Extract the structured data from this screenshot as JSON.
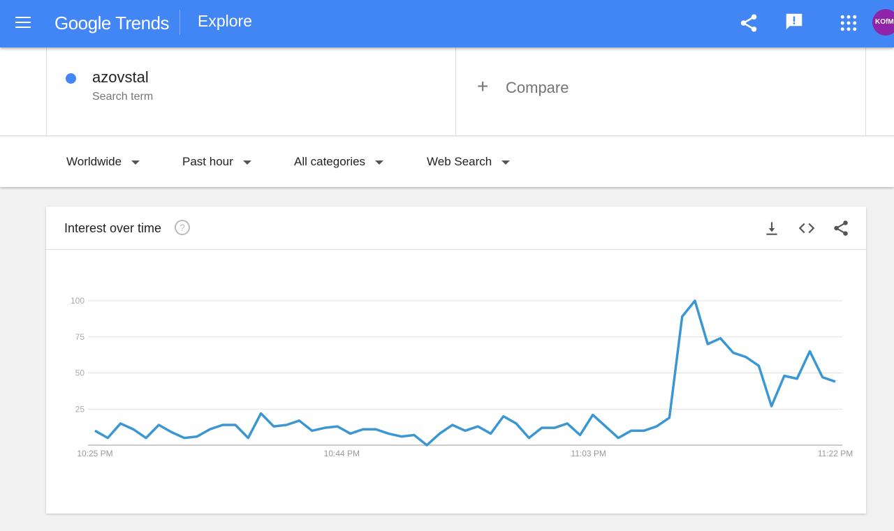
{
  "header": {
    "logo": "Google Trends",
    "page": "Explore",
    "avatar_text": "KOfMO",
    "icons": [
      "menu-icon",
      "share-icon",
      "feedback-icon",
      "apps-icon"
    ]
  },
  "term": {
    "name": "azovstal",
    "type": "Search term",
    "color": "#4285f4"
  },
  "compare": {
    "plus": "+",
    "label": "Compare"
  },
  "filters": [
    {
      "label": "Worldwide"
    },
    {
      "label": "Past hour"
    },
    {
      "label": "All categories"
    },
    {
      "label": "Web Search"
    }
  ],
  "card": {
    "title": "Interest over time",
    "help": "?",
    "icons": [
      "download-icon",
      "embed-icon",
      "share-icon"
    ]
  },
  "chart_data": {
    "type": "line",
    "title": "",
    "xlabel": "",
    "ylabel": "",
    "ylim": [
      0,
      100
    ],
    "yticks": [
      "25",
      "50",
      "75",
      "100"
    ],
    "x_tick_labels": [
      "10:25 PM",
      "10:44 PM",
      "11:03 PM",
      "11:22 PM"
    ],
    "grid": true,
    "color": "#3b97d3",
    "series": [
      {
        "values": [
          10,
          5,
          15,
          11,
          5,
          14,
          9,
          5,
          6,
          11,
          14,
          14,
          5,
          22,
          13,
          14,
          17,
          10,
          12,
          13,
          8,
          11,
          11,
          8,
          6,
          7,
          0,
          8,
          14,
          10,
          13,
          8,
          20,
          15,
          5,
          12,
          12,
          15,
          7,
          21,
          13,
          5,
          10,
          10,
          13,
          19,
          89,
          100,
          70,
          74,
          64,
          61,
          55,
          27,
          48,
          46,
          65,
          47,
          44
        ]
      }
    ]
  }
}
